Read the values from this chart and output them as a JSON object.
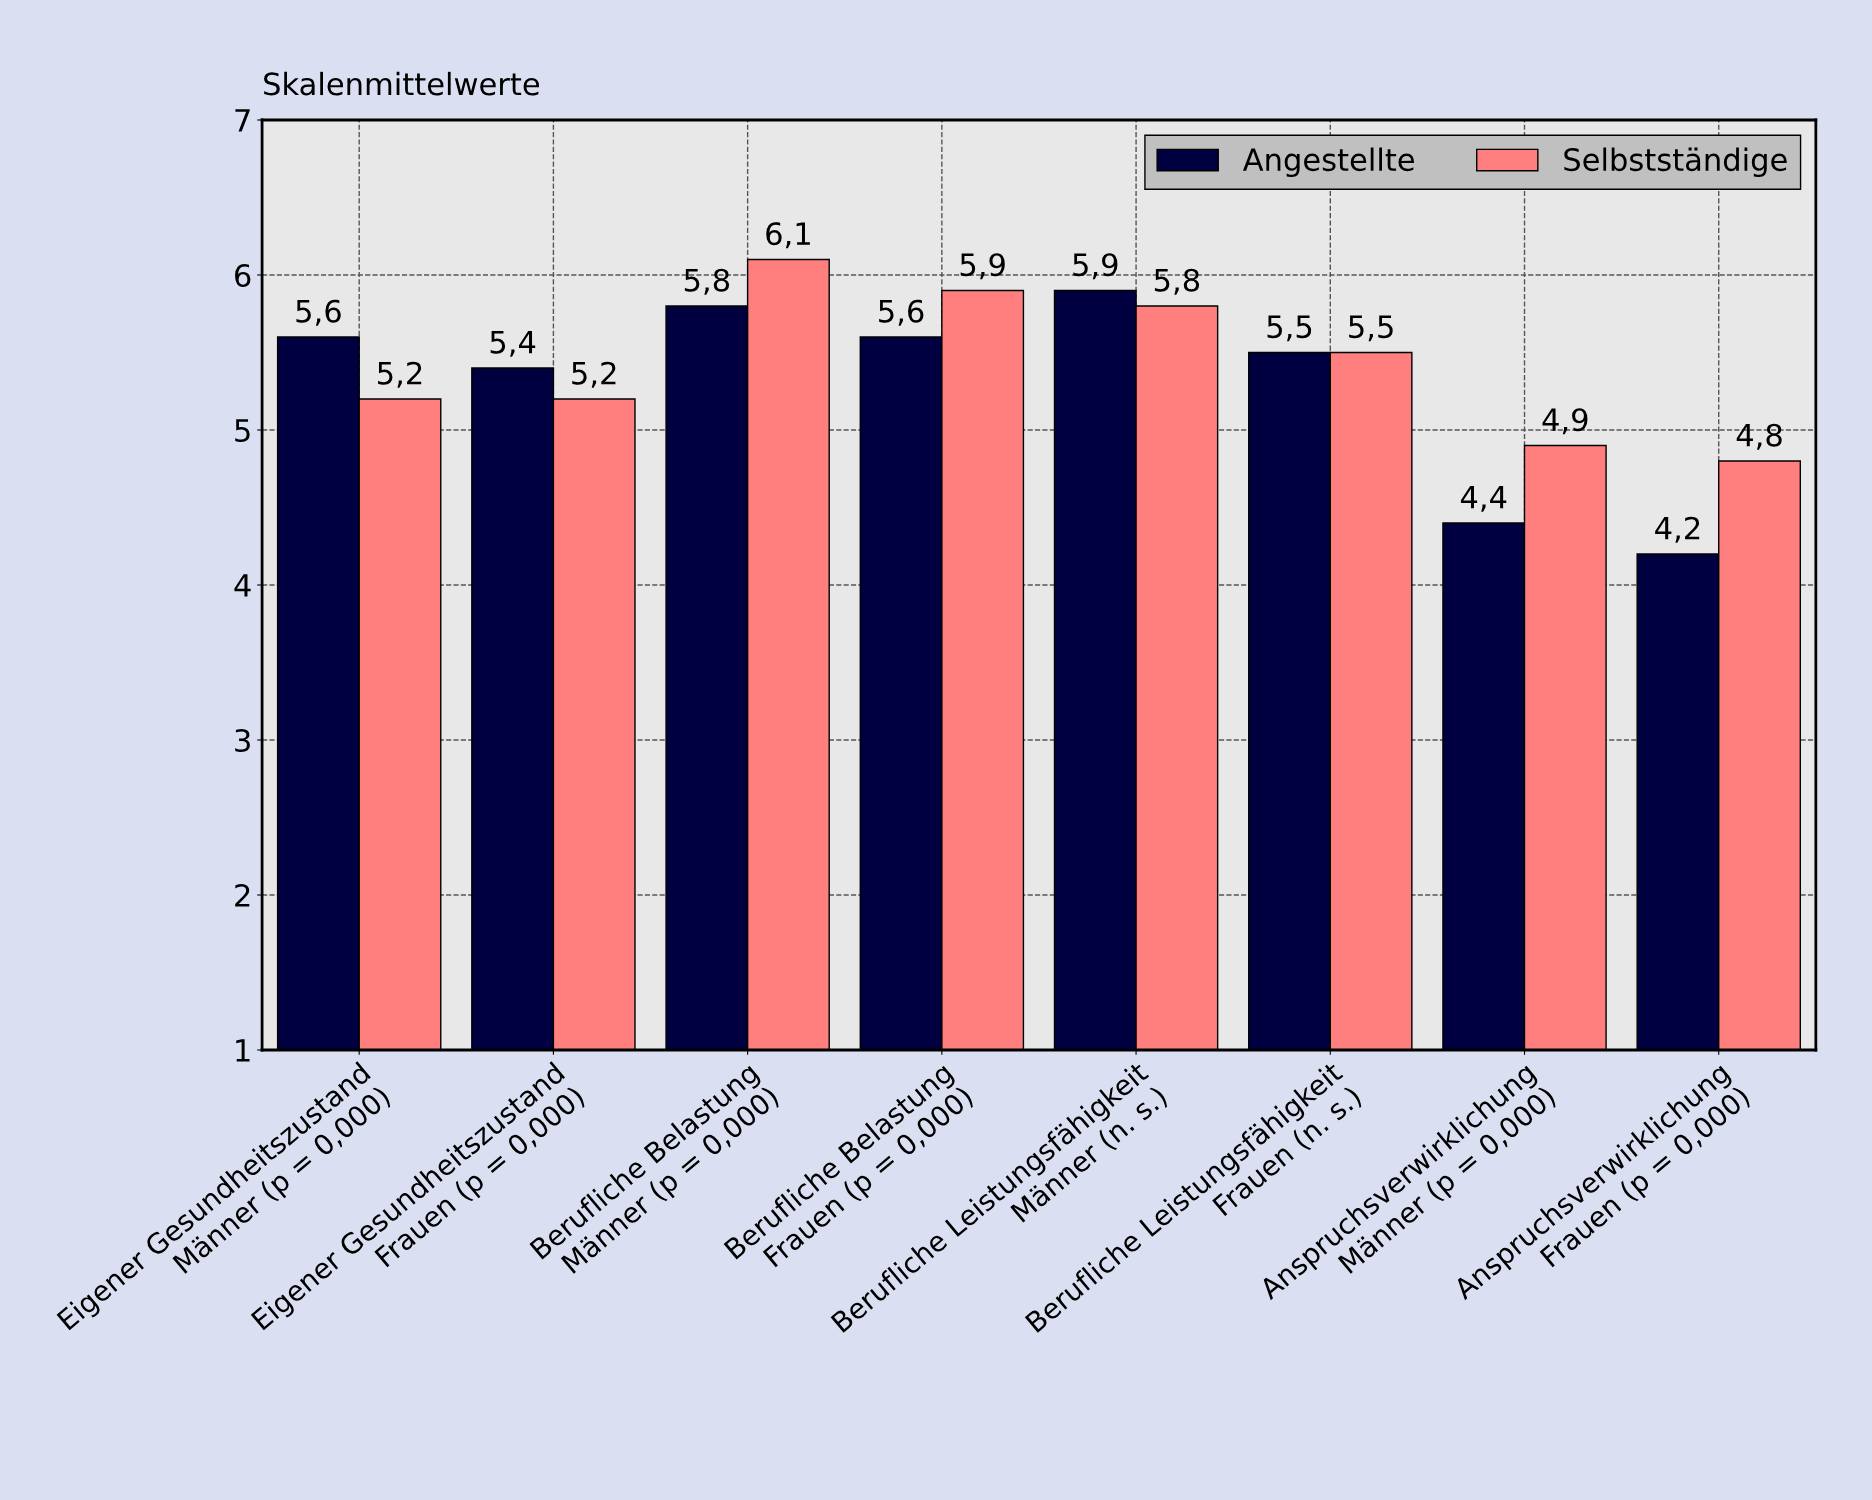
{
  "chart_data": {
    "type": "bar",
    "ylabel": "Skalenmittelwerte",
    "categories": [
      "Eigener Gesundheitszustand\nMänner (p = 0,000)",
      "Eigener Gesundheitszustand\nFrauen (p = 0,000)",
      "Berufliche Belastung\nMänner (p = 0,000)",
      "Berufliche Belastung\nFrauen (p = 0,000)",
      "Berufliche Leistungsfähigkeit\nMänner (n. s.)",
      "Berufliche Leistungsfähigkeit\nFrauen (n. s.)",
      "Anspruchsverwirklichung\nMänner (p = 0,000)",
      "Anspruchsverwirklichung\nFrauen (p = 0,000)"
    ],
    "series": [
      {
        "name": "Angestellte",
        "color": "#000040",
        "values": [
          5.6,
          5.4,
          5.8,
          5.6,
          5.9,
          5.5,
          4.4,
          4.2
        ],
        "value_labels": [
          "5,6",
          "5,4",
          "5,8",
          "5,6",
          "5,9",
          "5,5",
          "4,4",
          "4,2"
        ]
      },
      {
        "name": "Selbstständige",
        "color": "#ff7f7f",
        "values": [
          5.2,
          5.2,
          6.1,
          5.9,
          5.8,
          5.5,
          4.9,
          4.8
        ],
        "value_labels": [
          "5,2",
          "5,2",
          "6,1",
          "5,9",
          "5,8",
          "5,5",
          "4,9",
          "4,8"
        ]
      }
    ],
    "ylim": [
      1,
      7
    ],
    "yticks": [
      1,
      2,
      3,
      4,
      5,
      6,
      7
    ],
    "grid": true,
    "legend": "top right"
  }
}
